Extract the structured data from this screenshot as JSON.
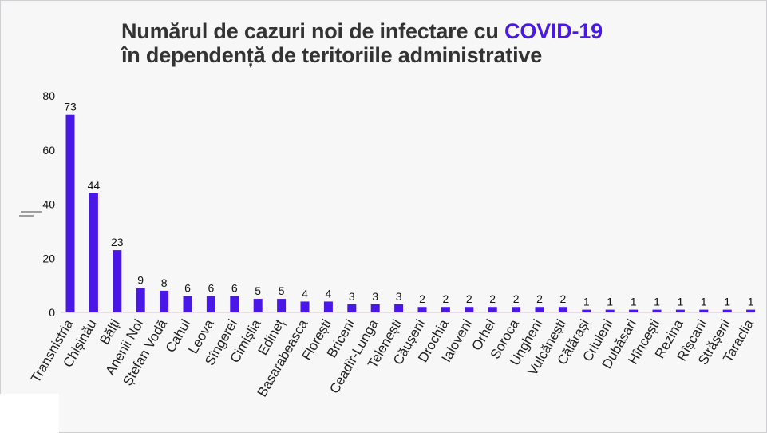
{
  "colors": {
    "bar": "#4a18e6",
    "accent": "#4a18e6",
    "text": "#333333"
  },
  "header": {
    "line1": "Numărul de cazuri noi de infectare cu ",
    "highlight": "COVID-19",
    "line2": "în dependență de teritoriile administrative"
  },
  "chart_data": {
    "type": "bar",
    "title": "Numărul de cazuri noi de infectare cu COVID-19 în dependență de teritoriile administrative",
    "xlabel": "",
    "ylabel": "",
    "ylim": [
      0,
      80
    ],
    "yticks": [
      0,
      20,
      40,
      60,
      80
    ],
    "grid": false,
    "categories": [
      "Transnistria",
      "Chișinău",
      "Bălți",
      "Anenii Noi",
      "Ștefan Vodă",
      "Cahul",
      "Leova",
      "Sîngerei",
      "Cimișlia",
      "Edineț",
      "Basarabeasca",
      "Florești",
      "Briceni",
      "Ceadîr-Lunga",
      "Telenești",
      "Căușeni",
      "Drochia",
      "Ialoveni",
      "Orhei",
      "Soroca",
      "Ungheni",
      "Vulcănești",
      "Călărași",
      "Criuleni",
      "Dubăsari",
      "Hîncești",
      "Rezina",
      "Rîșcani",
      "Strășeni",
      "Taraclia"
    ],
    "values": [
      73,
      44,
      23,
      9,
      8,
      6,
      6,
      6,
      5,
      5,
      4,
      4,
      3,
      3,
      3,
      2,
      2,
      2,
      2,
      2,
      2,
      2,
      1,
      1,
      1,
      1,
      1,
      1,
      1,
      1
    ]
  }
}
